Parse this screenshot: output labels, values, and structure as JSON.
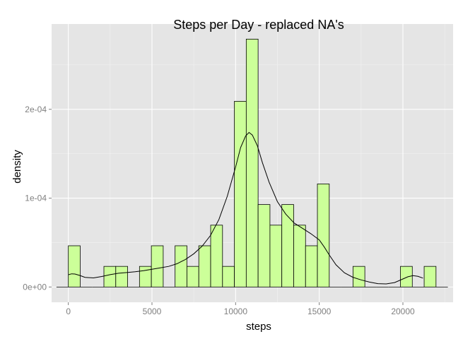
{
  "chart_data": {
    "type": "histogram",
    "title": "Steps per Day - replaced NA's",
    "xlabel": "steps",
    "ylabel": "density",
    "xlim": [
      -1000,
      23000
    ],
    "ylim": [
      -1.72e-05,
      0.000296
    ],
    "x_ticks": [
      0,
      5000,
      10000,
      15000,
      20000
    ],
    "x_tick_labels": [
      "0",
      "5000",
      "10000",
      "15000",
      "20000"
    ],
    "y_ticks": [
      0,
      0.0001,
      0.0002
    ],
    "y_tick_labels": [
      "0e+00",
      "1e-04",
      "2e-04"
    ],
    "grid": true,
    "colors": {
      "panel_bg": "#e5e5e5",
      "grid_major": "#ffffff",
      "grid_minor": "#f2f2f2",
      "bar_fill": "#ccff99",
      "bar_stroke": "#000000",
      "density_line": "#000000"
    },
    "bin_width": 709,
    "bin_start": -709,
    "bins": [
      {
        "x0": -709,
        "x1": 0,
        "density": 0
      },
      {
        "x0": 0,
        "x1": 709,
        "density": 4.64e-05
      },
      {
        "x0": 709,
        "x1": 1418,
        "density": 0
      },
      {
        "x0": 1418,
        "x1": 2127,
        "density": 0
      },
      {
        "x0": 2127,
        "x1": 2836,
        "density": 2.32e-05
      },
      {
        "x0": 2836,
        "x1": 3545,
        "density": 2.32e-05
      },
      {
        "x0": 3545,
        "x1": 4254,
        "density": 0
      },
      {
        "x0": 4254,
        "x1": 4963,
        "density": 2.32e-05
      },
      {
        "x0": 4963,
        "x1": 5672,
        "density": 4.64e-05
      },
      {
        "x0": 5672,
        "x1": 6381,
        "density": 0
      },
      {
        "x0": 6381,
        "x1": 7090,
        "density": 4.64e-05
      },
      {
        "x0": 7090,
        "x1": 7799,
        "density": 2.32e-05
      },
      {
        "x0": 7799,
        "x1": 8508,
        "density": 4.64e-05
      },
      {
        "x0": 8508,
        "x1": 9217,
        "density": 6.96e-05
      },
      {
        "x0": 9217,
        "x1": 9926,
        "density": 2.32e-05
      },
      {
        "x0": 9926,
        "x1": 10635,
        "density": 0.000209
      },
      {
        "x0": 10635,
        "x1": 11344,
        "density": 0.000279
      },
      {
        "x0": 11344,
        "x1": 12053,
        "density": 9.28e-05
      },
      {
        "x0": 12053,
        "x1": 12762,
        "density": 6.96e-05
      },
      {
        "x0": 12762,
        "x1": 13471,
        "density": 9.28e-05
      },
      {
        "x0": 13471,
        "x1": 14180,
        "density": 6.96e-05
      },
      {
        "x0": 14180,
        "x1": 14889,
        "density": 4.64e-05
      },
      {
        "x0": 14889,
        "x1": 15598,
        "density": 0.000116
      },
      {
        "x0": 15598,
        "x1": 16307,
        "density": 0
      },
      {
        "x0": 16307,
        "x1": 17016,
        "density": 0
      },
      {
        "x0": 17016,
        "x1": 17725,
        "density": 2.32e-05
      },
      {
        "x0": 17725,
        "x1": 18434,
        "density": 0
      },
      {
        "x0": 18434,
        "x1": 19143,
        "density": 0
      },
      {
        "x0": 19143,
        "x1": 19852,
        "density": 0
      },
      {
        "x0": 19852,
        "x1": 20561,
        "density": 2.32e-05
      },
      {
        "x0": 20561,
        "x1": 21270,
        "density": 0
      },
      {
        "x0": 21270,
        "x1": 21979,
        "density": 2.32e-05
      },
      {
        "x0": 21979,
        "x1": 22688,
        "density": 0
      }
    ],
    "density_curve": {
      "x": [
        0,
        200,
        400,
        700,
        1000,
        1500,
        2000,
        2500,
        3000,
        3500,
        4000,
        4500,
        5000,
        5500,
        6000,
        6500,
        7000,
        7500,
        8000,
        8500,
        9000,
        9500,
        10000,
        10300,
        10600,
        10800,
        11000,
        11300,
        11600,
        12000,
        12500,
        13000,
        13500,
        14000,
        14500,
        15000,
        15300,
        15600,
        16000,
        16500,
        17000,
        17500,
        18000,
        18500,
        19000,
        19500,
        20000,
        20300,
        20600,
        20900,
        21200
      ],
      "y": [
        1.38e-05,
        1.48e-05,
        1.46e-05,
        1.29e-05,
        1.09e-05,
        1.02e-05,
        1.18e-05,
        1.39e-05,
        1.55e-05,
        1.63e-05,
        1.72e-05,
        1.84e-05,
        2e-05,
        2.16e-05,
        2.32e-05,
        2.62e-05,
        3.1e-05,
        3.74e-05,
        4.6e-05,
        5.8e-05,
        7.6e-05,
        0.000102,
        0.000135,
        0.000157,
        0.00017,
        0.000174,
        0.000171,
        0.000159,
        0.00014,
        0.000118,
        9.6e-05,
        8.2e-05,
        7.2e-05,
        6.6e-05,
        6e-05,
        5.3e-05,
        4.5e-05,
        3.6e-05,
        2.5e-05,
        1.6e-05,
        1.1e-05,
        8e-06,
        5.5e-06,
        3.8e-06,
        3.5e-06,
        5e-06,
        9e-06,
        1.15e-05,
        1.28e-05,
        1.2e-05,
        1e-05
      ]
    }
  }
}
